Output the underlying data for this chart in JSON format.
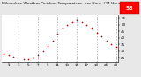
{
  "title": "Milwaukee Weather Outdoor Temperature  per Hour  (24 Hours)",
  "hours": [
    0,
    1,
    2,
    3,
    4,
    5,
    6,
    7,
    8,
    9,
    10,
    11,
    12,
    13,
    14,
    15,
    16,
    17,
    18,
    19,
    20,
    21,
    22,
    23
  ],
  "temperatures": [
    28,
    27,
    26,
    25,
    24,
    24,
    25,
    27,
    30,
    34,
    38,
    43,
    47,
    50,
    52,
    53,
    52,
    50,
    47,
    44,
    41,
    38,
    35,
    33
  ],
  "dot_color": "#cc0000",
  "bg_color": "#e8e8e8",
  "plot_bg": "#ffffff",
  "grid_color": "#999999",
  "ylim_min": 22,
  "ylim_max": 57,
  "ytick_values": [
    25,
    30,
    35,
    40,
    45,
    50,
    55
  ],
  "ytick_labels": [
    "25",
    "30",
    "35",
    "40",
    "45",
    "50",
    "55"
  ],
  "xtick_values": [
    1,
    3,
    5,
    7,
    9,
    11,
    13,
    15,
    17,
    19,
    21,
    23
  ],
  "xtick_labels": [
    "1",
    "3",
    "5",
    "7",
    "9",
    "11",
    "13",
    "15",
    "17",
    "19",
    "21",
    "23"
  ],
  "grid_x": [
    3,
    7,
    11,
    15,
    19,
    23
  ],
  "highlight_color": "#ff0000",
  "highlight_value": "53",
  "title_fontsize": 3.2,
  "tick_fontsize": 3.0
}
